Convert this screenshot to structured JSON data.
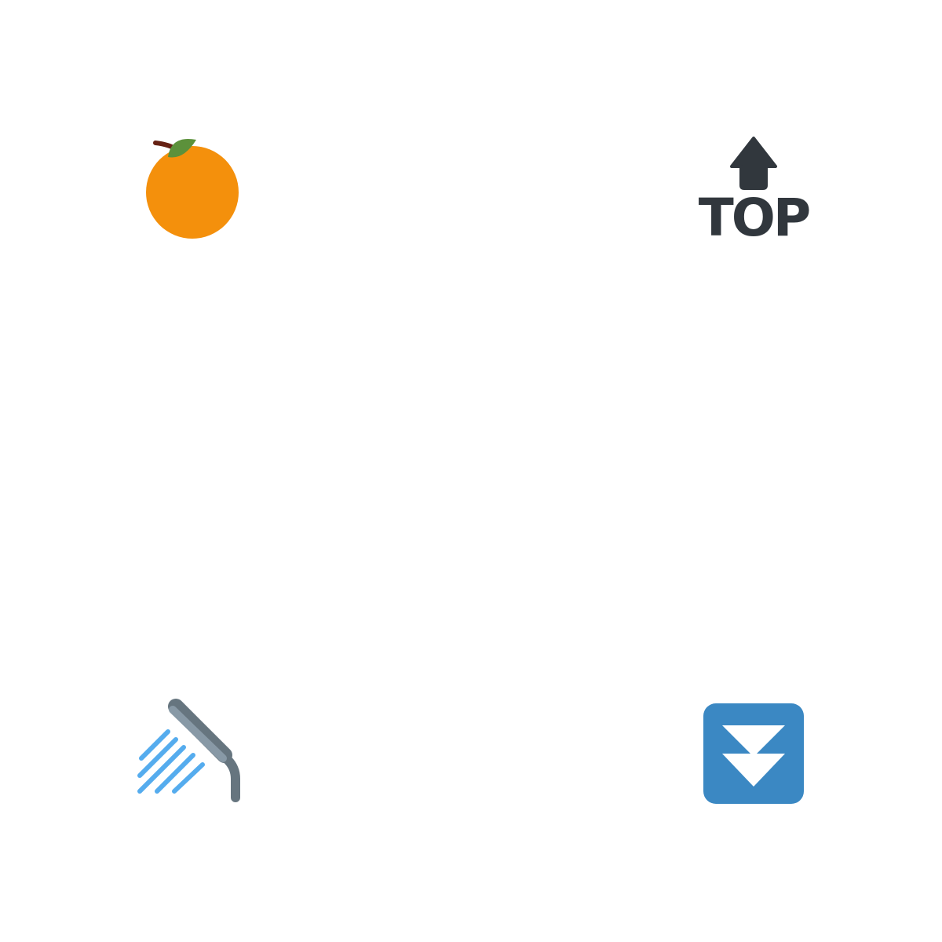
{
  "colors": {
    "background": "#ffffff",
    "orange_fruit": "#f4900c",
    "orange_leaf": "#5c913b",
    "orange_stem": "#662113",
    "top_dark": "#31373d",
    "shower_head_light": "#8899a6",
    "shower_head_dark": "#66757f",
    "shower_water": "#55acee",
    "fast_down_bg": "#3b88c3",
    "fast_down_arrow": "#ffffff"
  },
  "emojis": [
    {
      "icon": "tangerine-icon"
    },
    {
      "icon": "top-arrow-icon",
      "text": "TOP"
    },
    {
      "icon": "shower-icon"
    },
    {
      "icon": "fast-down-button-icon"
    }
  ]
}
